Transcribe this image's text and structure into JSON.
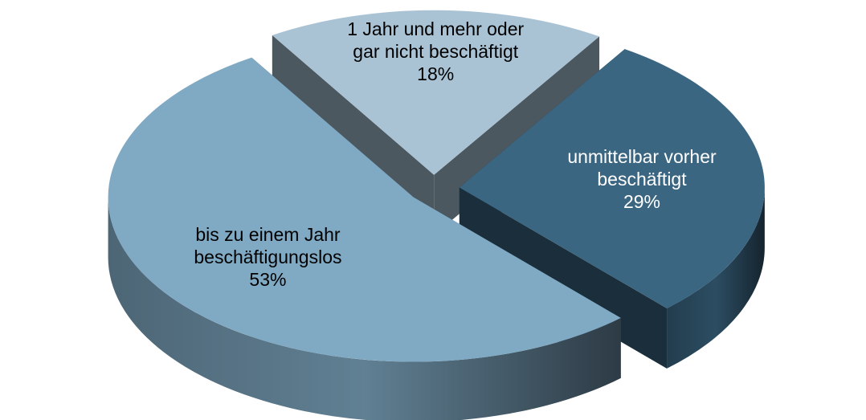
{
  "chart_data": {
    "type": "pie",
    "categories": [
      "1 Jahr und mehr oder gar nicht beschäftigt",
      "unmittelbar vorher beschäftigt",
      "bis zu einem Jahr beschäftigungslos"
    ],
    "values": [
      18,
      29,
      53
    ],
    "value_labels": [
      "18%",
      "29%",
      "53%"
    ],
    "colors": [
      "#a9c3d5",
      "#3b6682",
      "#80aac4"
    ]
  }
}
